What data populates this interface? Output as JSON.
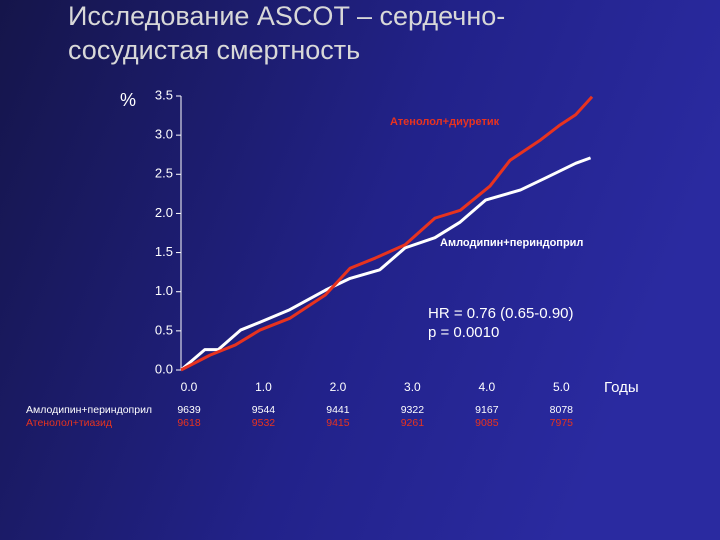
{
  "chart_data": {
    "type": "line",
    "title": [
      "Исследование ASCOT – сердечно-",
      "сосудистая смертность"
    ],
    "y_label": "%",
    "x_label": "Годы",
    "xlim": [
      0,
      5.6
    ],
    "ylim": [
      0,
      3.5
    ],
    "xticks": [
      {
        "value": 0,
        "label": "0.0"
      },
      {
        "value": 1,
        "label": "1.0"
      },
      {
        "value": 2,
        "label": "2.0"
      },
      {
        "value": 3,
        "label": "3.0"
      },
      {
        "value": 4,
        "label": "4.0"
      },
      {
        "value": 5,
        "label": "5.0"
      }
    ],
    "yticks": [
      {
        "value": 0,
        "label": "0.0"
      },
      {
        "value": 0.5,
        "label": "0.5"
      },
      {
        "value": 1,
        "label": "1.0"
      },
      {
        "value": 1.5,
        "label": "1.5"
      },
      {
        "value": 2,
        "label": "2.0"
      },
      {
        "value": 2.5,
        "label": "2.5"
      },
      {
        "value": 3,
        "label": "3.0"
      },
      {
        "value": 3.5,
        "label": "3.5"
      }
    ],
    "series": [
      {
        "name": "Атенолол+диуретик",
        "color": "#e8331f",
        "x": [
          0,
          0.39,
          0.73,
          1.06,
          1.46,
          1.94,
          2.27,
          2.61,
          3.01,
          3.41,
          3.75,
          4.15,
          4.42,
          4.83,
          5.09,
          5.3,
          5.52
        ],
        "values": [
          0,
          0.19,
          0.32,
          0.51,
          0.66,
          0.96,
          1.3,
          1.43,
          1.6,
          1.94,
          2.04,
          2.35,
          2.68,
          2.94,
          3.13,
          3.26,
          3.49
        ]
      },
      {
        "name": "Амлодипин+периндоприл",
        "color": "#ffffff",
        "x": [
          0,
          0.32,
          0.5,
          0.8,
          1.06,
          1.46,
          1.94,
          2.27,
          2.67,
          3.01,
          3.41,
          3.75,
          4.09,
          4.56,
          4.89,
          5.3,
          5.5
        ],
        "values": [
          0,
          0.26,
          0.26,
          0.51,
          0.61,
          0.77,
          1.02,
          1.17,
          1.28,
          1.56,
          1.69,
          1.89,
          2.17,
          2.3,
          2.45,
          2.64,
          2.71
        ]
      }
    ],
    "annotations": [
      "HR = 0.76 (0.65-0.90)",
      "p = 0.0010"
    ],
    "risk_table": [
      {
        "name": "Амлодипин+периндоприл",
        "color": "#ffffff",
        "values": [
          9639,
          9544,
          9441,
          9322,
          9167,
          8078
        ]
      },
      {
        "name": "Атенолол+тиазид",
        "color": "#e8331f",
        "values": [
          9618,
          9532,
          9415,
          9261,
          9085,
          7975
        ]
      }
    ]
  }
}
